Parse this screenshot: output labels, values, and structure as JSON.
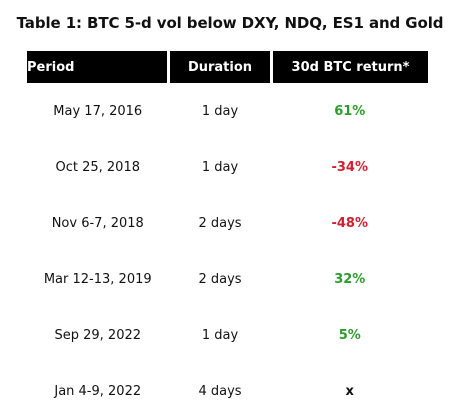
{
  "title": "Table 1: BTC 5-d vol below DXY, NDQ, ES1 and Gold",
  "headers": {
    "period": "Period",
    "duration": "Duration",
    "return": "30d BTC return*"
  },
  "rows": [
    {
      "period": "May 17, 2016",
      "duration": "1 day",
      "return": "61%",
      "sentiment": "positive"
    },
    {
      "period": "Oct 25, 2018",
      "duration": "1 day",
      "return": "-34%",
      "sentiment": "negative"
    },
    {
      "period": "Nov 6-7, 2018",
      "duration": "2 days",
      "return": "-48%",
      "sentiment": "negative"
    },
    {
      "period": "Mar 12-13, 2019",
      "duration": "2 days",
      "return": "32%",
      "sentiment": "positive"
    },
    {
      "period": "Sep 29, 2022",
      "duration": "1 day",
      "return": "5%",
      "sentiment": "positive"
    },
    {
      "period": "Jan 4-9, 2022",
      "duration": "4 days",
      "return": "x",
      "sentiment": "neutral"
    }
  ],
  "colors": {
    "positive": "#2e9b2e",
    "negative": "#d11f2e",
    "neutral": "#111111",
    "header_bg": "#000000",
    "header_text": "#ffffff"
  }
}
